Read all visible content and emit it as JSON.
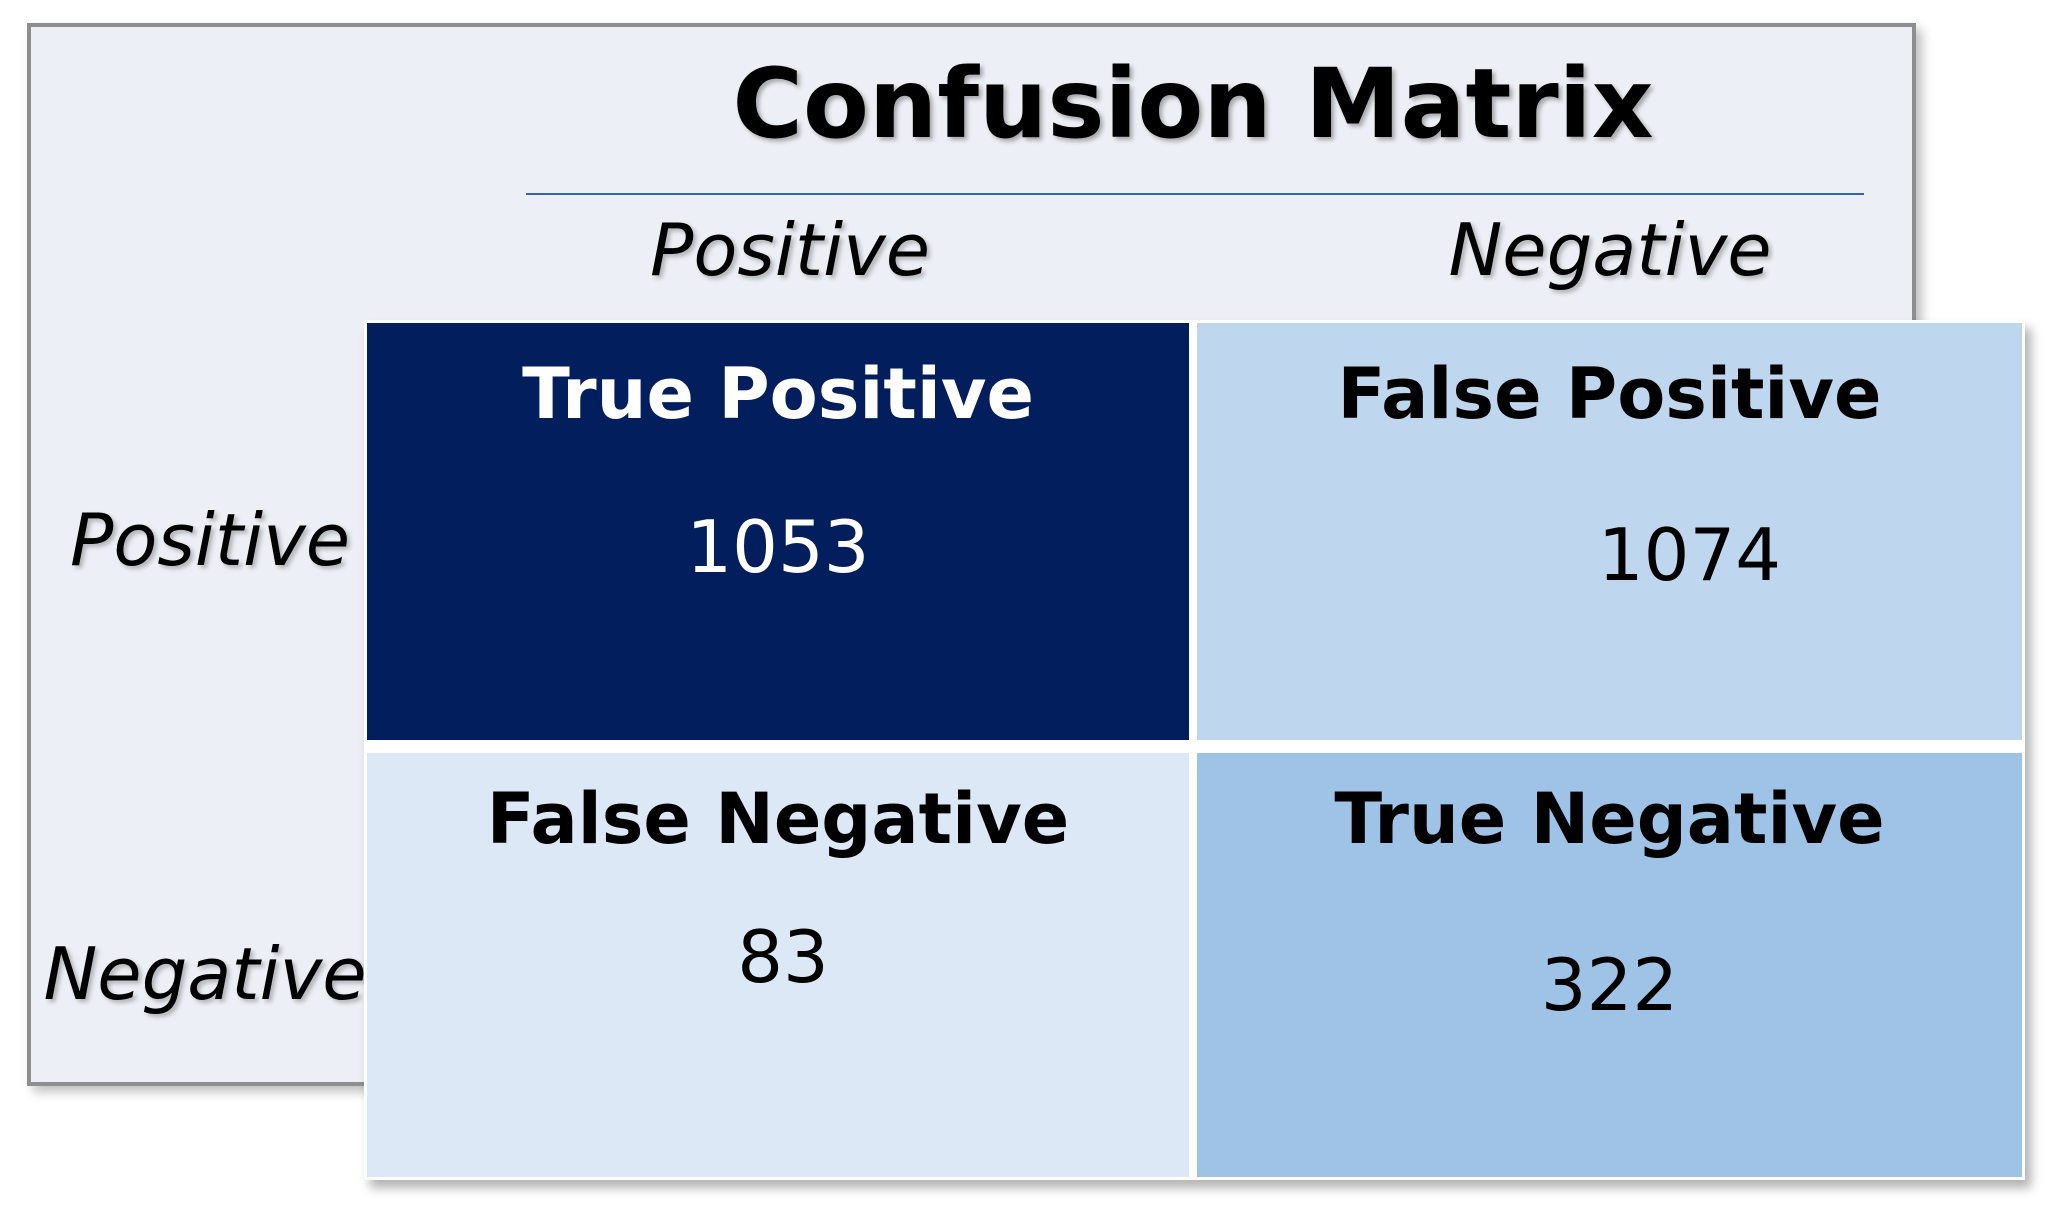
{
  "chart_data": {
    "type": "heatmap",
    "title": "Confusion Matrix",
    "columns": [
      "Positive",
      "Negative"
    ],
    "rows": [
      "Positive",
      "Negative"
    ],
    "cells": [
      [
        {
          "label": "True Positive",
          "value": 1053,
          "color": "#021e5c",
          "text_color": "#ffffff"
        },
        {
          "label": "False Positive",
          "value": 1074,
          "color": "#bfd7ee",
          "text_color": "#000000"
        }
      ],
      [
        {
          "label": "False Negative",
          "value": 83,
          "color": "#dce8f6",
          "text_color": "#000000"
        },
        {
          "label": "True Negative",
          "value": 322,
          "color": "#9ec3e6",
          "text_color": "#000000"
        }
      ]
    ]
  }
}
